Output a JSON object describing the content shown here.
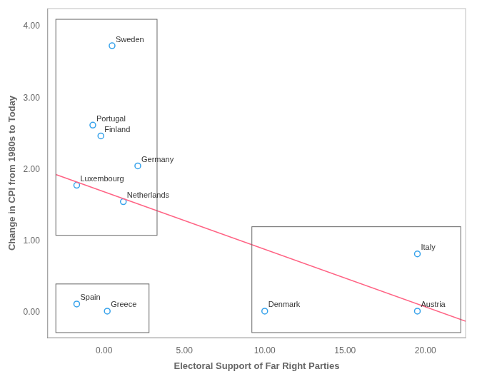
{
  "chart_data": {
    "type": "scatter",
    "x_label": "Electoral Support of Far Right Parties",
    "y_label": "Change in CPI from 1980s to Today",
    "xlim": [
      -3.5,
      22.5
    ],
    "ylim": [
      -0.35,
      4.25
    ],
    "xticks": [
      {
        "value": 0.0,
        "label": "0.00"
      },
      {
        "value": 5.0,
        "label": "5.00"
      },
      {
        "value": 10.0,
        "label": "10.00"
      },
      {
        "value": 15.0,
        "label": "15.00"
      },
      {
        "value": 20.0,
        "label": "20.00"
      }
    ],
    "yticks": [
      {
        "value": 0.0,
        "label": "0.00"
      },
      {
        "value": 1.0,
        "label": "1.00"
      },
      {
        "value": 2.0,
        "label": "2.00"
      },
      {
        "value": 3.0,
        "label": "3.00"
      },
      {
        "value": 4.0,
        "label": "4.00"
      }
    ],
    "grid": false,
    "marker": "circle",
    "point_labels": [
      "Sweden",
      "Portugal",
      "Finland",
      "Germany",
      "Luxembourg",
      "Netherlands",
      "Spain",
      "Greece",
      "Denmark",
      "Austria",
      "Italy"
    ],
    "x": [
      0.5,
      -0.7,
      -0.2,
      2.1,
      -1.7,
      1.2,
      -1.7,
      0.2,
      10.0,
      19.5,
      19.5
    ],
    "values": [
      3.73,
      2.62,
      2.47,
      2.05,
      1.78,
      1.55,
      0.12,
      0.02,
      0.02,
      0.02,
      0.82
    ],
    "regression_line": {
      "x": [
        -3.0,
        22.5
      ],
      "values": [
        1.93,
        -0.12
      ]
    },
    "boxes": [
      {
        "x": -3.0,
        "y": 1.08,
        "width": 6.3,
        "height": 3.02
      },
      {
        "x": -3.0,
        "y": -0.28,
        "width": 5.8,
        "height": 0.68
      },
      {
        "x": 9.2,
        "y": -0.28,
        "width": 13.0,
        "height": 1.48
      }
    ]
  }
}
